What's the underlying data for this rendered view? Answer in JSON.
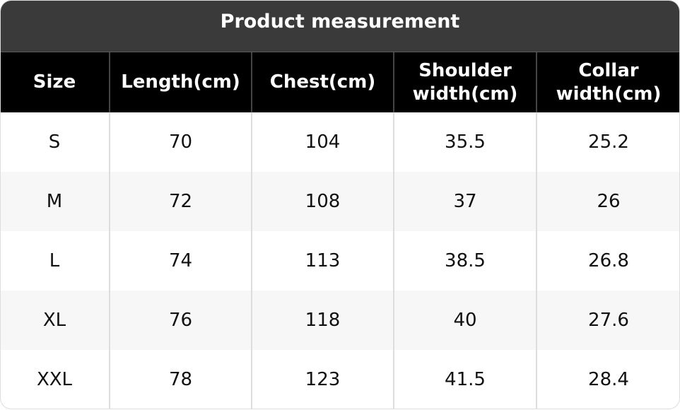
{
  "title": "Product measurement",
  "table": {
    "header": [
      "Size",
      "Length(cm)",
      "Chest(cm)",
      "Shoulder width(cm)",
      "Collar width(cm)"
    ],
    "rows": [
      [
        "S",
        70,
        104,
        35.5,
        25.2
      ],
      [
        "M",
        72,
        108,
        37,
        26
      ],
      [
        "L",
        74,
        113,
        38.5,
        26.8
      ],
      [
        "XL",
        76,
        118,
        40,
        27.6
      ],
      [
        "XXL",
        78,
        123,
        41.5,
        28.4
      ]
    ]
  }
}
